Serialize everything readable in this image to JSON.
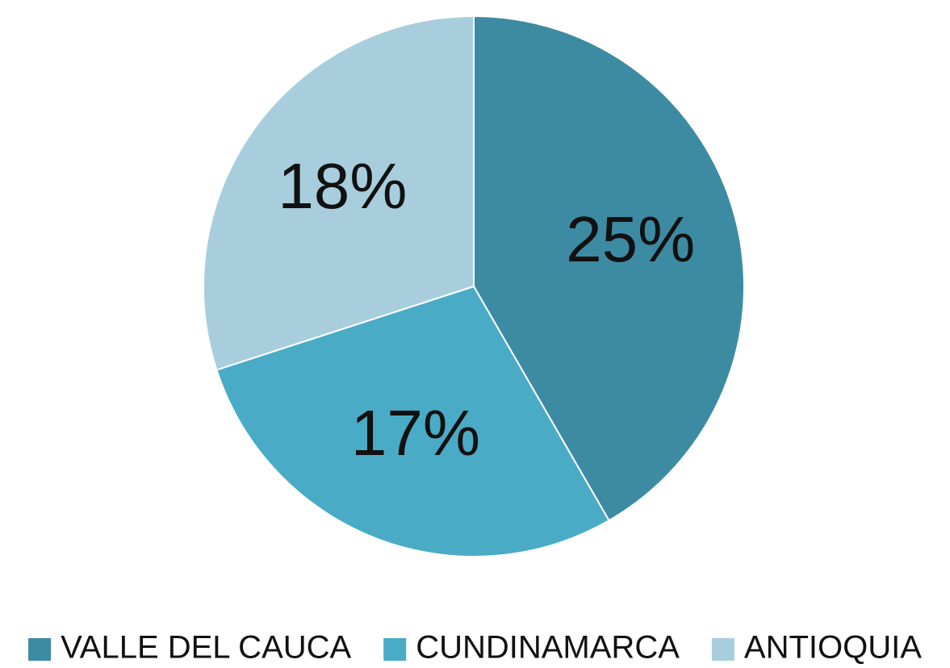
{
  "chart_data": {
    "type": "pie",
    "categories": [
      "VALLE DEL CAUCA",
      "CUNDINAMARCA",
      "ANTIOQUIA"
    ],
    "values": [
      25,
      17,
      18
    ],
    "value_labels": [
      "25%",
      "17%",
      "18%"
    ],
    "colors": [
      "#3d8ba3",
      "#4aabc6",
      "#a8cedd"
    ],
    "legend": "bottom"
  }
}
